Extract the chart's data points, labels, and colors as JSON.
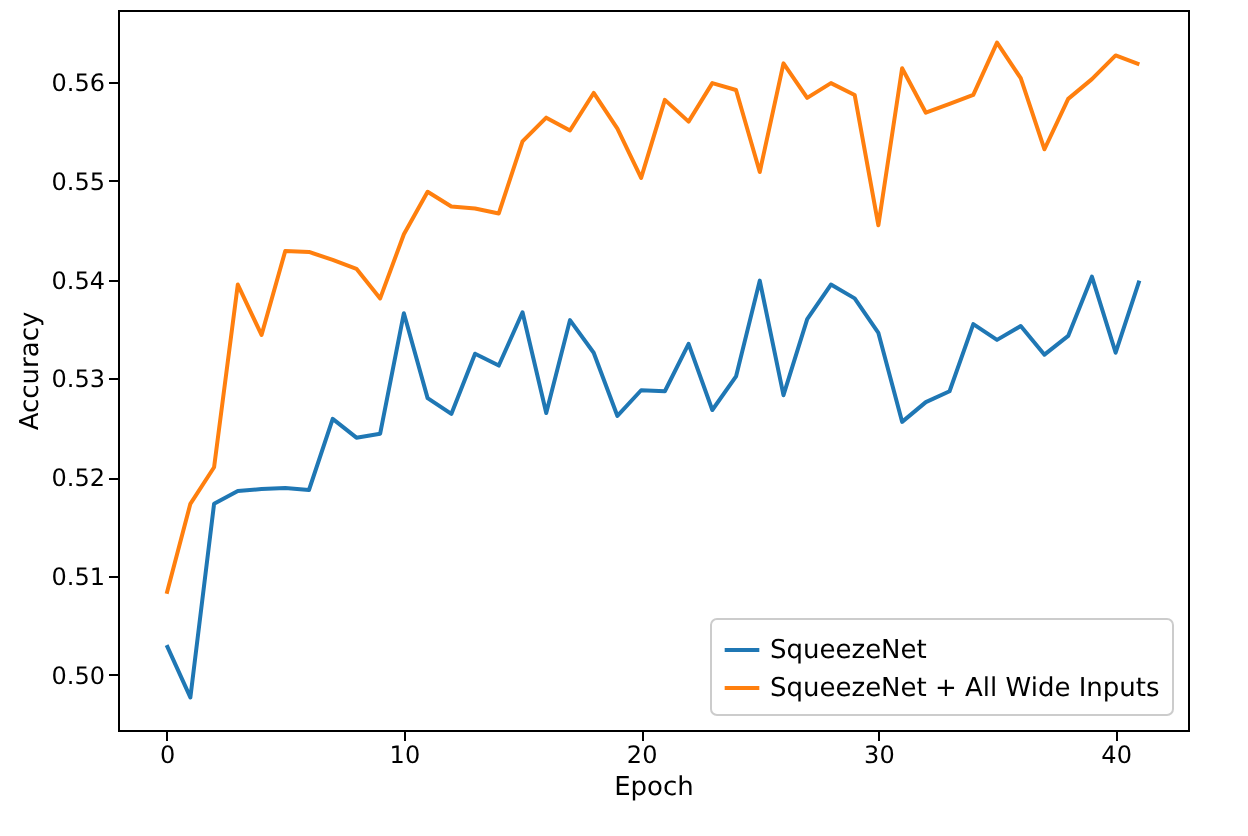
{
  "chart_data": {
    "type": "line",
    "xlabel": "Epoch",
    "ylabel": "Accuracy",
    "x": [
      0,
      1,
      2,
      3,
      4,
      5,
      6,
      7,
      8,
      9,
      10,
      11,
      12,
      13,
      14,
      15,
      16,
      17,
      18,
      19,
      20,
      21,
      22,
      23,
      24,
      25,
      26,
      27,
      28,
      29,
      30,
      31,
      32,
      33,
      34,
      35,
      36,
      37,
      38,
      39,
      40,
      41
    ],
    "series": [
      {
        "name": "SqueezeNet",
        "color": "#1f77b4",
        "values": [
          0.503,
          0.4977,
          0.5173,
          0.5186,
          0.5188,
          0.5189,
          0.5187,
          0.5259,
          0.524,
          0.5244,
          0.5366,
          0.528,
          0.5264,
          0.5325,
          0.5313,
          0.5367,
          0.5265,
          0.5359,
          0.5326,
          0.5262,
          0.5288,
          0.5287,
          0.5335,
          0.5268,
          0.5302,
          0.5399,
          0.5283,
          0.536,
          0.5395,
          0.5381,
          0.5346,
          0.5256,
          0.5276,
          0.5287,
          0.5355,
          0.5339,
          0.5353,
          0.5324,
          0.5343,
          0.5403,
          0.5326,
          0.5399
        ]
      },
      {
        "name": "SqueezeNet + All Wide Inputs",
        "color": "#ff7f0e",
        "values": [
          0.5082,
          0.5173,
          0.521,
          0.5395,
          0.5344,
          0.5429,
          0.5428,
          0.542,
          0.5411,
          0.5381,
          0.5446,
          0.5489,
          0.5474,
          0.5472,
          0.5467,
          0.554,
          0.5564,
          0.5551,
          0.5589,
          0.5553,
          0.5503,
          0.5582,
          0.556,
          0.5599,
          0.5592,
          0.5509,
          0.5619,
          0.5584,
          0.5599,
          0.5587,
          0.5455,
          0.5614,
          0.5569,
          0.5578,
          0.5587,
          0.564,
          0.5604,
          0.5532,
          0.5583,
          0.5603,
          0.5627,
          0.5618
        ]
      }
    ],
    "xlim": [
      -2.05,
      43.05
    ],
    "xticks": [
      0,
      10,
      20,
      30,
      40
    ],
    "ylim": [
      0.4944,
      0.5673
    ],
    "yticks": [
      {
        "value": 0.5,
        "label": "0.50"
      },
      {
        "value": 0.51,
        "label": "0.51"
      },
      {
        "value": 0.52,
        "label": "0.52"
      },
      {
        "value": 0.53,
        "label": "0.53"
      },
      {
        "value": 0.54,
        "label": "0.54"
      },
      {
        "value": 0.55,
        "label": "0.55"
      },
      {
        "value": 0.56,
        "label": "0.56"
      }
    ],
    "grid": false,
    "legend": "bottom right",
    "marker": "none",
    "line_style": "solid"
  }
}
